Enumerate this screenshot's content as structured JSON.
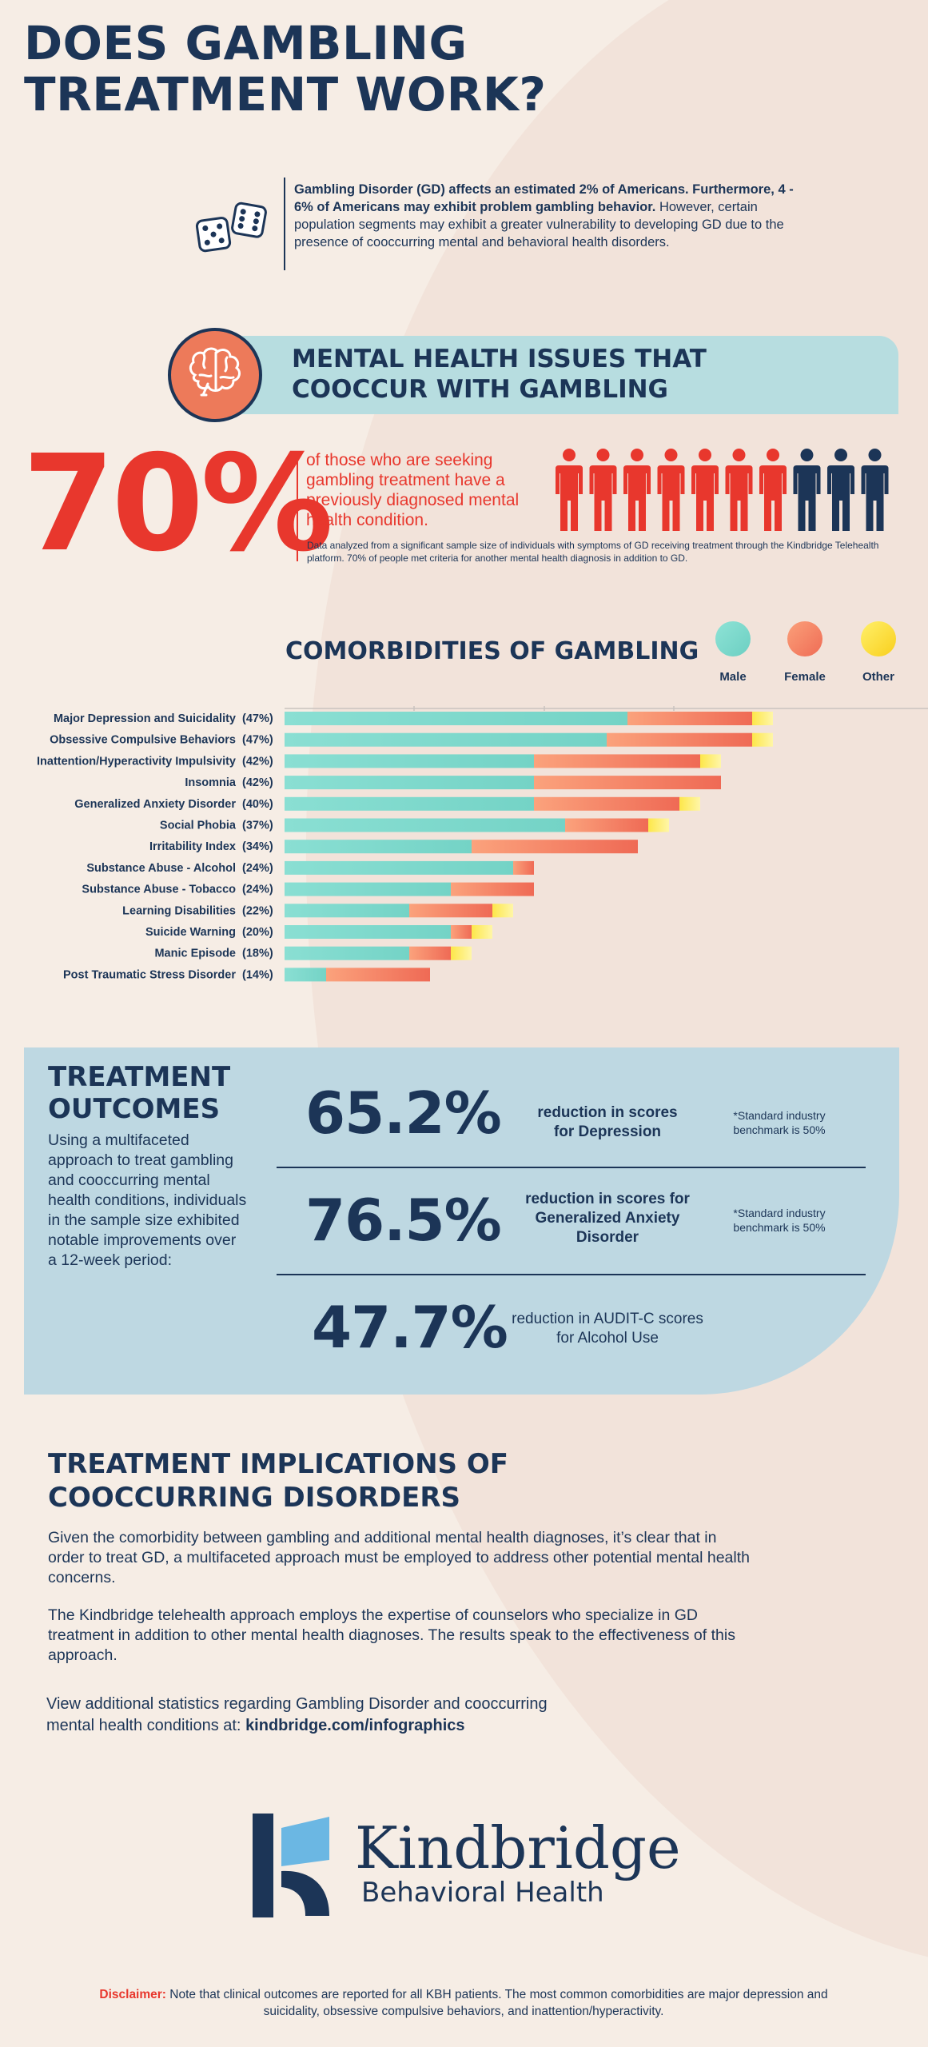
{
  "title_line1": "DOES GAMBLING",
  "title_line2": "TREATMENT WORK?",
  "intro": {
    "bold": "Gambling Disorder (GD) affects an estimated 2% of Americans. Furthermore, 4 - 6% of Americans may exhibit problem gambling behavior.",
    "plain": "However, certain population segments may exhibit a greater vulnerability to developing GD due to the presence of cooccurring mental and behavioral health disorders."
  },
  "section1": {
    "title_line1": "MENTAL HEALTH ISSUES THAT",
    "title_line2": "COOCCUR WITH GAMBLING"
  },
  "stat70": {
    "value": "70%",
    "text": "of those who are seeking gambling treatment have a previously diagnosed mental health condition.",
    "note": "Data analyzed from a significant sample size of individuals with symptoms of GD receiving treatment through the Kindbridge Telehealth platform. 70% of people met criteria for another mental health diagnosis in addition to GD.",
    "people_highlighted": 7,
    "people_total": 10
  },
  "colors": {
    "navy": "#1c3557",
    "red": "#e8372d",
    "male": "#7fd8cc",
    "female": "#f58a68",
    "other": "#fde23a"
  },
  "chart_data": {
    "type": "bar",
    "orientation": "horizontal-stacked",
    "title": "COMORBIDITIES OF GAMBLING",
    "legend": [
      "Male",
      "Female",
      "Other"
    ],
    "categories": [
      {
        "label": "Major Depression and Suicidality",
        "pct": "(47%)"
      },
      {
        "label": "Obsessive Compulsive Behaviors",
        "pct": "(47%)"
      },
      {
        "label": "Inattention/Hyperactivity Impulsivity",
        "pct": "(42%)"
      },
      {
        "label": "Insomnia",
        "pct": "(42%)"
      },
      {
        "label": "Generalized Anxiety Disorder",
        "pct": "(40%)"
      },
      {
        "label": "Social Phobia",
        "pct": "(37%)"
      },
      {
        "label": "Irritability Index",
        "pct": "(34%)"
      },
      {
        "label": "Substance Abuse - Alcohol",
        "pct": "(24%)"
      },
      {
        "label": "Substance Abuse - Tobacco",
        "pct": "(24%)"
      },
      {
        "label": "Learning Disabilities",
        "pct": "(22%)"
      },
      {
        "label": "Suicide Warning",
        "pct": "(20%)"
      },
      {
        "label": "Manic Episode",
        "pct": "(18%)"
      },
      {
        "label": "Post Traumatic Stress Disorder",
        "pct": "(14%)"
      }
    ],
    "series": [
      {
        "name": "Male",
        "values": [
          33,
          31,
          24,
          24,
          24,
          27,
          18,
          22,
          16,
          12,
          16,
          12,
          4
        ]
      },
      {
        "name": "Female",
        "values": [
          12,
          14,
          16,
          18,
          14,
          8,
          16,
          2,
          8,
          8,
          2,
          4,
          10
        ]
      },
      {
        "name": "Other",
        "values": [
          2,
          2,
          2,
          0,
          2,
          2,
          0,
          0,
          0,
          2,
          2,
          2,
          0
        ]
      }
    ],
    "xlim": [
      0,
      50
    ]
  },
  "outcomes": {
    "title_line1": "TREATMENT",
    "title_line2": "OUTCOMES",
    "description": "Using a multifaceted approach to treat gambling and cooccurring mental health conditions, individuals in the sample size exhibited notable improvements over a 12-week period:",
    "items": [
      {
        "value": "65.2%",
        "label": "reduction in scores for Depression",
        "note": "*Standard industry benchmark is 50%"
      },
      {
        "value": "76.5%",
        "label": "reduction in scores for Generalized Anxiety Disorder",
        "note": "*Standard industry benchmark is 50%"
      },
      {
        "value": "47.7%",
        "label": "reduction in AUDIT-C scores for Alcohol Use",
        "note": ""
      }
    ]
  },
  "implications": {
    "title_line1": "TREATMENT IMPLICATIONS OF",
    "title_line2": "COOCCURRING DISORDERS",
    "para1": "Given the comorbidity between gambling and additional mental health diagnoses, it’s clear that in order to treat GD, a multifaceted approach must be employed to address other potential mental health concerns.",
    "para2": "The Kindbridge telehealth approach employs the expertise of counselors who specialize in GD treatment in addition to other mental health diagnoses. The results speak to the effectiveness of this approach.",
    "link_prefix": "View additional statistics regarding Gambling Disorder and cooccurring mental health conditions at:",
    "link_url": "kindbridge.com/infographics"
  },
  "logo": {
    "name": "Kindbridge",
    "sub": "Behavioral Health"
  },
  "disclaimer": {
    "label": "Disclaimer:",
    "text": "Note that clinical outcomes are reported for all KBH patients. The most common comorbidities are major depression and suicidality, obsessive compulsive behaviors, and inattention/hyperactivity."
  }
}
